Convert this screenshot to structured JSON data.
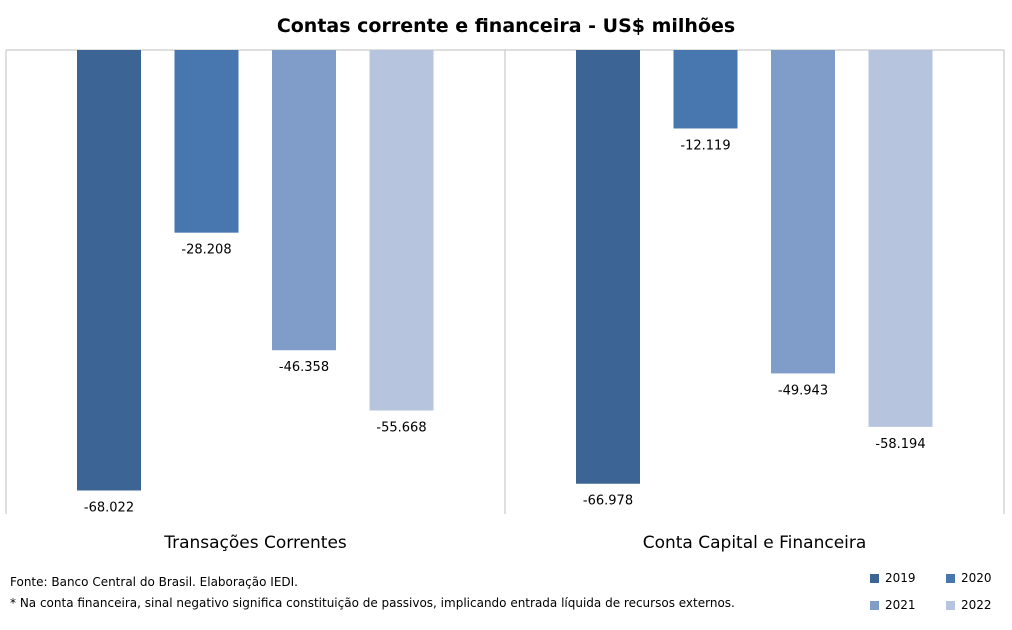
{
  "chart_data": {
    "type": "bar",
    "title": "Contas corrente e financeira - US$ milhões",
    "categories": [
      "Transações Correntes",
      "Conta Capital e Financeira"
    ],
    "series": [
      {
        "name": "2019",
        "color": "#3c6494",
        "values": [
          -68022,
          -66978
        ],
        "labels": [
          "-68.022",
          "-66.978"
        ]
      },
      {
        "name": "2020",
        "color": "#4876ae",
        "values": [
          -28208,
          -12119
        ],
        "labels": [
          "-28.208",
          "-12.119"
        ]
      },
      {
        "name": "2021",
        "color": "#7f9dc8",
        "values": [
          -46358,
          -49943
        ],
        "labels": [
          "-46.358",
          "-49.943"
        ]
      },
      {
        "name": "2022",
        "color": "#b6c4dd",
        "values": [
          -55668,
          -58194
        ],
        "labels": [
          "-55.668",
          "-58.194"
        ]
      }
    ],
    "ylim": [
      -72000,
      0
    ],
    "grid": false,
    "legend_position": "bottom-right"
  },
  "footer": {
    "source": "Fonte: Banco Central do Brasil. Elaboração IEDI.",
    "note": "* Na conta financeira, sinal negativo significa constituição de passivos, implicando entrada líquida de recursos externos."
  }
}
